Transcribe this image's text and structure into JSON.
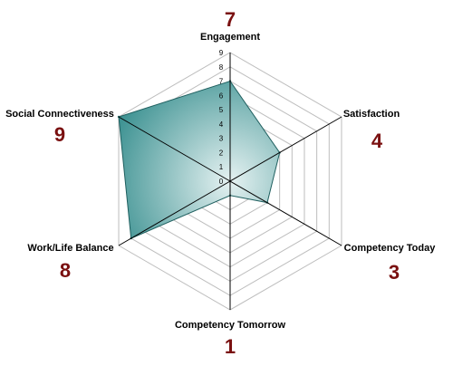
{
  "chart_data": {
    "type": "radar",
    "title": "",
    "categories": [
      "Engagement",
      "Satisfaction",
      "Competency Today",
      "Competency Tomorrow",
      "Work/Life Balance",
      "Social Connectiveness"
    ],
    "values": [
      7,
      4,
      3,
      1,
      8,
      9
    ],
    "value_labels": [
      "7",
      "4",
      "3",
      "1",
      "8",
      "9"
    ],
    "rlim": [
      0,
      9
    ],
    "ticks": [
      "0",
      "1",
      "2",
      "3",
      "4",
      "5",
      "6",
      "7",
      "8",
      "9"
    ],
    "grid": true,
    "colors": {
      "fill_center": "#e6f2f2",
      "fill_edge": "#2f8a8a",
      "outline": "#1f5f5f",
      "grid": "#bdbdbd",
      "axis": "#000000",
      "value_label": "#7a1010"
    }
  }
}
